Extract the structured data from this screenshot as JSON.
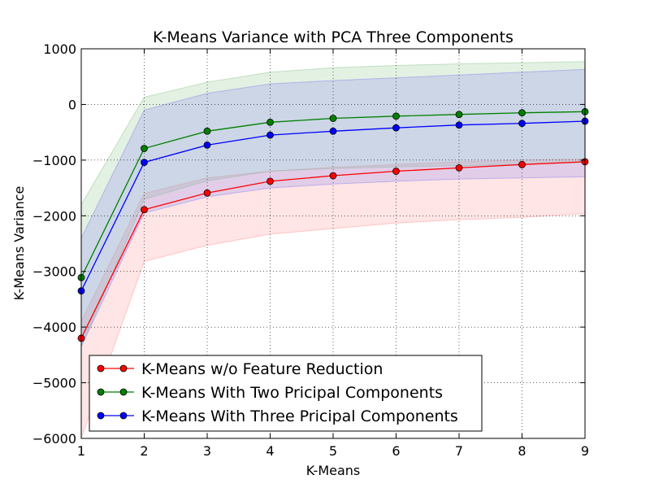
{
  "chart_data": {
    "type": "line",
    "title": "K-Means Variance with PCA Three Components",
    "xlabel": "K-Means",
    "ylabel": "K-Means Variance",
    "xlim": [
      1,
      9
    ],
    "ylim": [
      -6000,
      1000
    ],
    "x_ticks": [
      "1",
      "2",
      "3",
      "4",
      "5",
      "6",
      "7",
      "8",
      "9"
    ],
    "y_ticks": [
      "1000",
      "0",
      "−1000",
      "−2000",
      "−3000",
      "−4000",
      "−5000",
      "−6000"
    ],
    "y_tick_values": [
      1000,
      0,
      -1000,
      -2000,
      -3000,
      -4000,
      -5000,
      -6000
    ],
    "grid": true,
    "legend_position": "lower-left",
    "x": [
      1,
      2,
      3,
      4,
      5,
      6,
      7,
      8,
      9
    ],
    "series": [
      {
        "name": "K-Means w/o Feature Reduction",
        "color": "#ff0000",
        "band_color": "#ff9999",
        "values": [
          -4200,
          -1890,
          -1590,
          -1380,
          -1280,
          -1200,
          -1140,
          -1080,
          -1030
        ],
        "band_upper": [
          -3900,
          -1600,
          -1320,
          -1200,
          -1130,
          -1080,
          -1030,
          -1000,
          -980
        ],
        "band_lower": [
          -6000,
          -2820,
          -2530,
          -2330,
          -2230,
          -2130,
          -2070,
          -2030,
          -1960
        ]
      },
      {
        "name": "K-Means With Two Pricipal Components",
        "color": "#008000",
        "band_color": "#90c890",
        "values": [
          -3110,
          -790,
          -480,
          -320,
          -250,
          -210,
          -180,
          -150,
          -130
        ],
        "band_upper": [
          -1800,
          130,
          400,
          580,
          660,
          700,
          730,
          750,
          770
        ],
        "band_lower": [
          -4350,
          -1700,
          -1370,
          -1200,
          -1150,
          -1120,
          -1100,
          -1080,
          -1040
        ]
      },
      {
        "name": "K-Means With Three Pricipal Components",
        "color": "#0000ff",
        "band_color": "#8888ee",
        "values": [
          -3350,
          -1040,
          -730,
          -550,
          -480,
          -420,
          -370,
          -340,
          -300
        ],
        "band_upper": [
          -2400,
          -100,
          200,
          370,
          430,
          480,
          530,
          580,
          630
        ],
        "band_lower": [
          -4350,
          -1950,
          -1660,
          -1500,
          -1430,
          -1380,
          -1340,
          -1320,
          -1300
        ]
      }
    ]
  }
}
